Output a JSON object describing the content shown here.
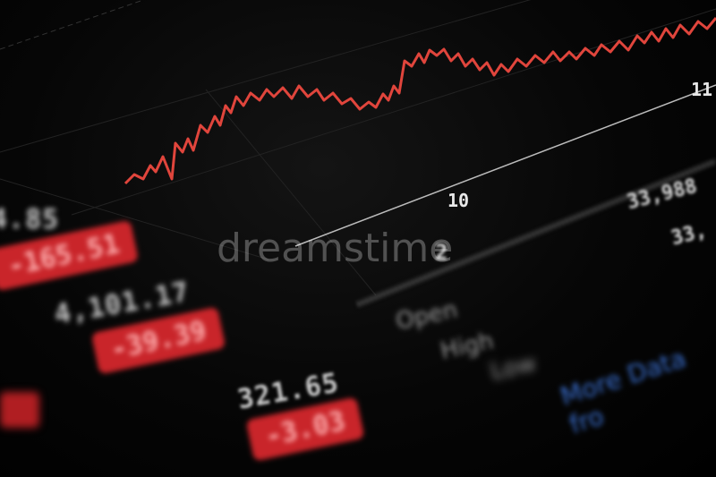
{
  "colors": {
    "line": "#e0453c",
    "badge": "#c9252a",
    "link": "#3a6fd0"
  },
  "chart_axis": {
    "label_10": "10",
    "label_11": "11",
    "label_2": "2"
  },
  "left_panel": {
    "rows": [
      {
        "price": "4.85",
        "change": "-165.51"
      },
      {
        "price": "4,101.17",
        "change": "-39.39"
      },
      {
        "price": "321.65",
        "change": "-3.03"
      }
    ]
  },
  "right_panel": {
    "prices": [
      "33,988",
      "33,"
    ],
    "labels": [
      "Open",
      "High",
      "Low"
    ],
    "more_link": "More Data fro"
  },
  "watermark": "dreamstime"
}
